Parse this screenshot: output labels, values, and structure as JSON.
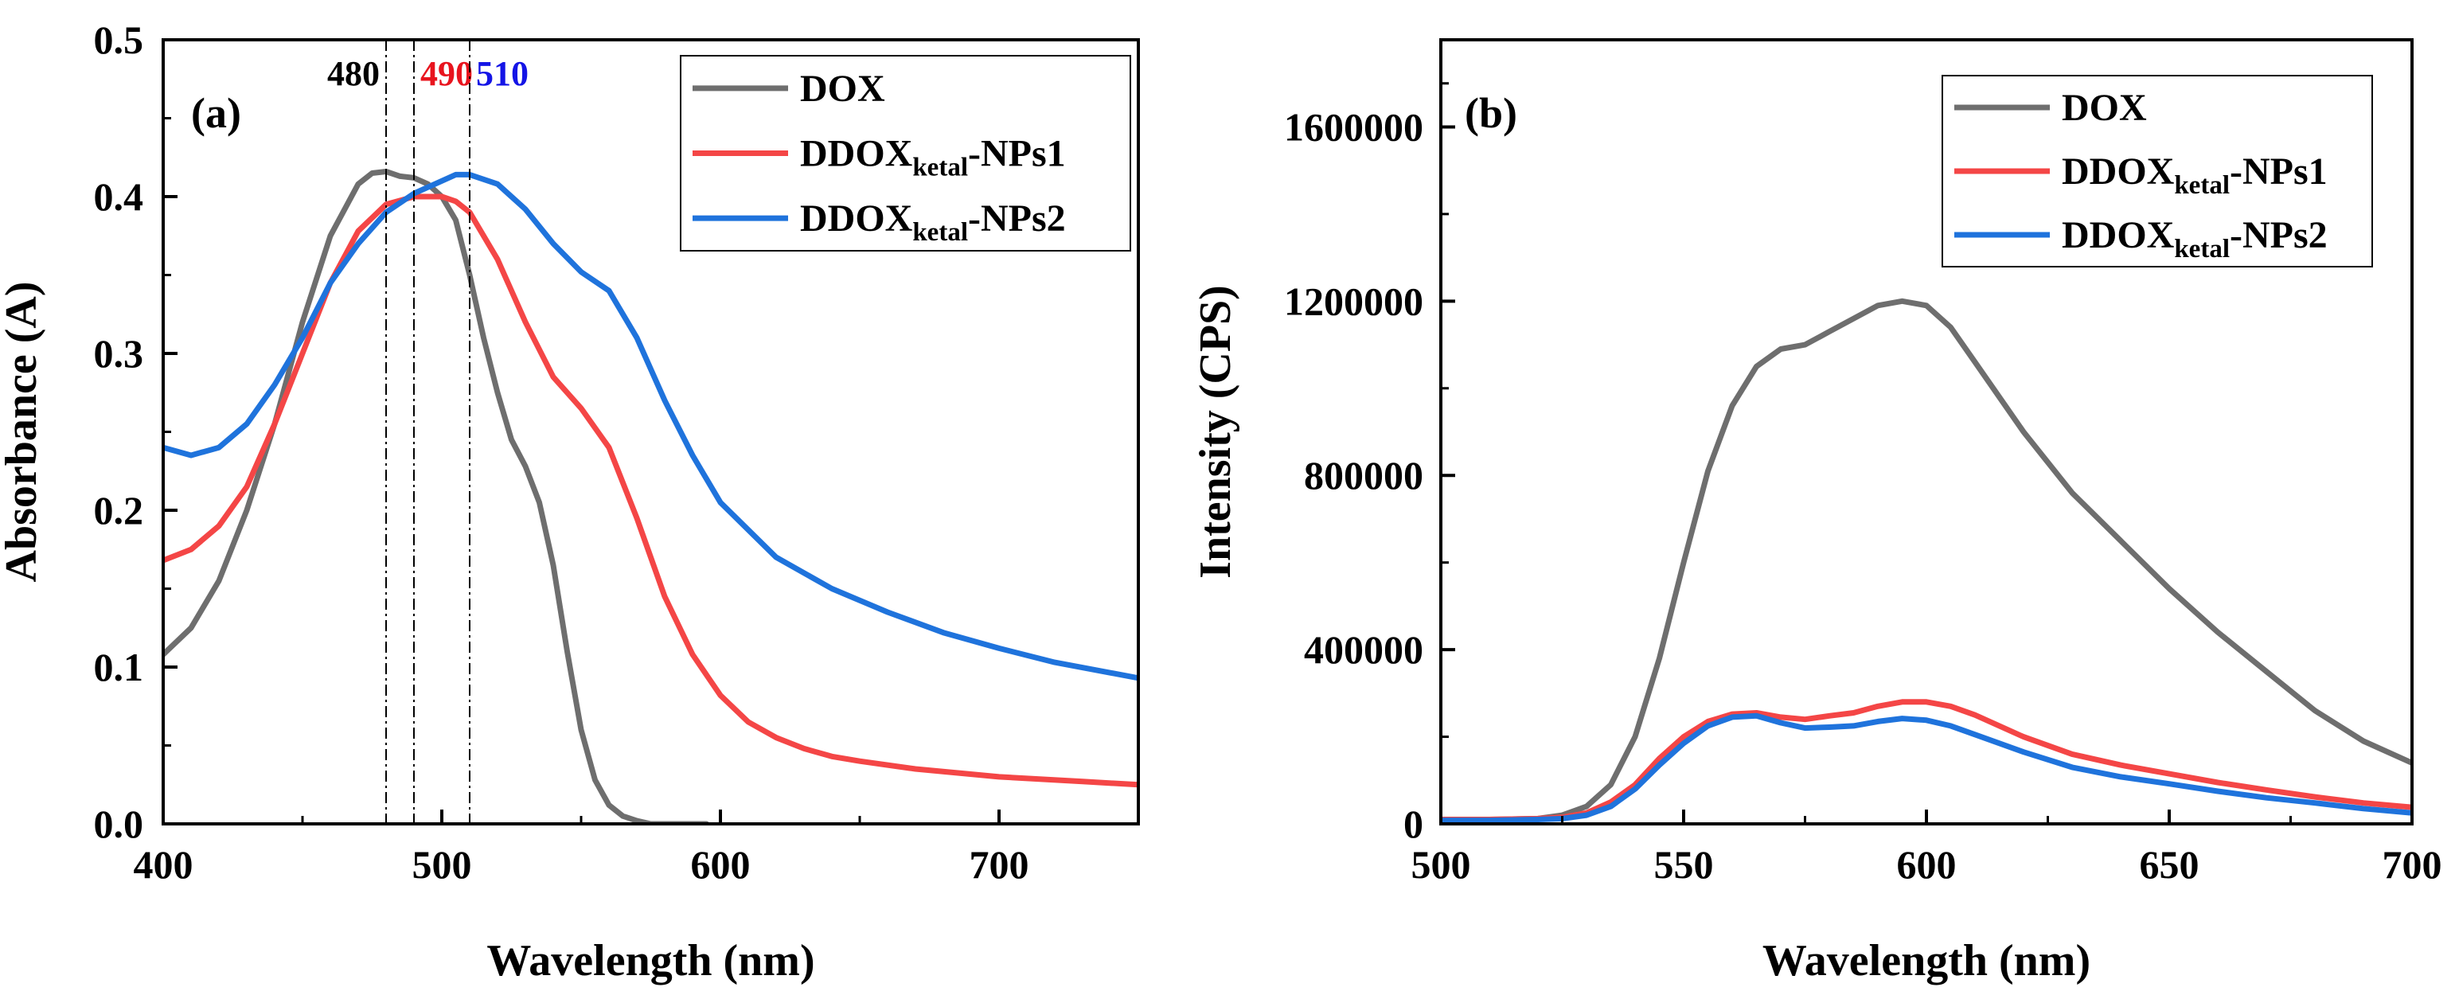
{
  "colors": {
    "dox": "#6e6e6e",
    "np1": "#f44646",
    "np2": "#1f73dc",
    "axis": "#000000"
  },
  "chart_data": [
    {
      "type": "line",
      "panel_label": "(a)",
      "xlabel": "Wavelength (nm)",
      "ylabel": "Absorbance (A)",
      "xlim": [
        400,
        750
      ],
      "ylim": [
        0.0,
        0.5
      ],
      "xticks": [
        400,
        500,
        600,
        700
      ],
      "xtick_labels": [
        "400",
        "500",
        "600",
        "700"
      ],
      "yticks": [
        0.0,
        0.1,
        0.2,
        0.3,
        0.4,
        0.5
      ],
      "ytick_labels": [
        "0.0",
        "0.1",
        "0.2",
        "0.3",
        "0.4",
        "0.5"
      ],
      "legend": [
        {
          "main": "DOX",
          "sub": "",
          "tail": ""
        },
        {
          "main": "DDOX",
          "sub": "ketal",
          "tail": "-NPs1"
        },
        {
          "main": "DDOX",
          "sub": "ketal",
          "tail": "-NPs2"
        }
      ],
      "annotations": [
        {
          "x": 480,
          "text": "480",
          "color": "#000000"
        },
        {
          "x": 490,
          "text": "490",
          "color": "#e8141e"
        },
        {
          "x": 510,
          "text": "510",
          "color": "#1414e6"
        }
      ],
      "series": [
        {
          "name": "DOX",
          "color_key": "dox",
          "x": [
            400,
            410,
            420,
            430,
            440,
            450,
            460,
            470,
            475,
            480,
            485,
            490,
            495,
            500,
            505,
            510,
            515,
            520,
            525,
            530,
            535,
            540,
            545,
            550,
            555,
            560,
            565,
            570,
            575,
            580,
            585,
            590,
            595
          ],
          "y": [
            0.108,
            0.125,
            0.155,
            0.2,
            0.255,
            0.32,
            0.375,
            0.408,
            0.415,
            0.416,
            0.413,
            0.412,
            0.408,
            0.4,
            0.385,
            0.35,
            0.31,
            0.275,
            0.245,
            0.228,
            0.205,
            0.165,
            0.11,
            0.06,
            0.028,
            0.012,
            0.005,
            0.002,
            0.0,
            0.0,
            0.0,
            0.0,
            0.0
          ]
        },
        {
          "name": "DDOX-ketal-NPs1",
          "color_key": "np1",
          "x": [
            400,
            410,
            420,
            430,
            440,
            450,
            460,
            470,
            480,
            490,
            500,
            505,
            510,
            520,
            530,
            540,
            550,
            560,
            570,
            580,
            590,
            600,
            610,
            620,
            630,
            640,
            650,
            670,
            700,
            730,
            750
          ],
          "y": [
            0.168,
            0.175,
            0.19,
            0.215,
            0.255,
            0.3,
            0.345,
            0.378,
            0.395,
            0.4,
            0.4,
            0.397,
            0.39,
            0.36,
            0.32,
            0.285,
            0.265,
            0.24,
            0.195,
            0.145,
            0.108,
            0.082,
            0.065,
            0.055,
            0.048,
            0.043,
            0.04,
            0.035,
            0.03,
            0.027,
            0.025
          ]
        },
        {
          "name": "DDOX-ketal-NPs2",
          "color_key": "np2",
          "x": [
            400,
            410,
            420,
            430,
            440,
            450,
            460,
            470,
            480,
            490,
            500,
            505,
            510,
            520,
            530,
            540,
            550,
            560,
            570,
            580,
            590,
            600,
            620,
            640,
            660,
            680,
            700,
            720,
            750
          ],
          "y": [
            0.24,
            0.235,
            0.24,
            0.255,
            0.28,
            0.31,
            0.345,
            0.37,
            0.39,
            0.402,
            0.41,
            0.414,
            0.414,
            0.408,
            0.392,
            0.37,
            0.352,
            0.34,
            0.31,
            0.27,
            0.235,
            0.205,
            0.17,
            0.15,
            0.135,
            0.122,
            0.112,
            0.103,
            0.093
          ]
        }
      ]
    },
    {
      "type": "line",
      "panel_label": "(b)",
      "xlabel": "Wavelength (nm)",
      "ylabel": "Intensity (CPS)",
      "xlim": [
        500,
        700
      ],
      "ylim": [
        0,
        1800000
      ],
      "xticks": [
        500,
        550,
        600,
        650,
        700
      ],
      "xtick_labels": [
        "500",
        "550",
        "600",
        "650",
        "700"
      ],
      "yticks": [
        0,
        400000,
        800000,
        1200000,
        1600000
      ],
      "ytick_labels": [
        "0",
        "400000",
        "800000",
        "1200000",
        "1600000"
      ],
      "legend": [
        {
          "main": "DOX",
          "sub": "",
          "tail": ""
        },
        {
          "main": "DDOX",
          "sub": "ketal",
          "tail": "-NPs1"
        },
        {
          "main": "DDOX",
          "sub": "ketal",
          "tail": "-NPs2"
        }
      ],
      "series": [
        {
          "name": "DOX",
          "color_key": "dox",
          "x": [
            500,
            510,
            520,
            525,
            530,
            535,
            540,
            545,
            550,
            555,
            560,
            565,
            570,
            575,
            580,
            585,
            590,
            595,
            600,
            605,
            610,
            620,
            630,
            640,
            650,
            660,
            670,
            680,
            690,
            700
          ],
          "y": [
            10000,
            10000,
            12000,
            20000,
            40000,
            90000,
            200000,
            380000,
            600000,
            810000,
            960000,
            1050000,
            1090000,
            1100000,
            1130000,
            1160000,
            1190000,
            1200000,
            1190000,
            1140000,
            1060000,
            900000,
            760000,
            650000,
            540000,
            440000,
            350000,
            260000,
            190000,
            140000
          ]
        },
        {
          "name": "DDOX-ketal-NPs1",
          "color_key": "np1",
          "x": [
            500,
            510,
            520,
            525,
            530,
            535,
            540,
            545,
            550,
            555,
            560,
            565,
            570,
            575,
            580,
            585,
            590,
            595,
            600,
            605,
            610,
            620,
            630,
            640,
            650,
            660,
            670,
            680,
            690,
            700
          ],
          "y": [
            10000,
            10000,
            12000,
            15000,
            25000,
            50000,
            90000,
            150000,
            200000,
            235000,
            252000,
            255000,
            245000,
            240000,
            248000,
            255000,
            270000,
            280000,
            280000,
            270000,
            250000,
            200000,
            160000,
            135000,
            115000,
            95000,
            78000,
            62000,
            48000,
            38000
          ]
        },
        {
          "name": "DDOX-ketal-NPs2",
          "color_key": "np2",
          "x": [
            500,
            510,
            520,
            525,
            530,
            535,
            540,
            545,
            550,
            555,
            560,
            565,
            570,
            575,
            580,
            585,
            590,
            595,
            600,
            605,
            610,
            620,
            630,
            640,
            650,
            660,
            670,
            680,
            690,
            700
          ],
          "y": [
            8000,
            8000,
            10000,
            12000,
            20000,
            40000,
            80000,
            135000,
            185000,
            225000,
            245000,
            248000,
            232000,
            220000,
            222000,
            225000,
            235000,
            242000,
            238000,
            225000,
            205000,
            165000,
            130000,
            108000,
            92000,
            75000,
            60000,
            48000,
            35000,
            25000
          ]
        }
      ]
    }
  ]
}
